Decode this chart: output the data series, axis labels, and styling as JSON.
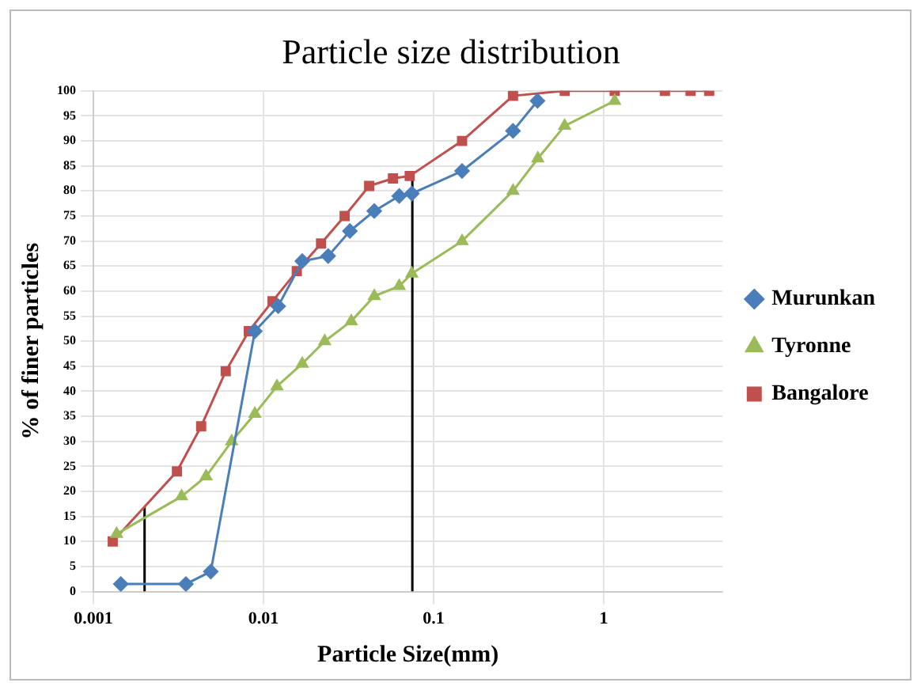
{
  "chart_data": {
    "type": "line",
    "title": "Particle size distribution",
    "xlabel": "Particle Size(mm)",
    "ylabel": "% of finer particles",
    "log": "x",
    "xlim": [
      0.001,
      5
    ],
    "xticks": [
      0.001,
      0.01,
      0.1,
      1
    ],
    "ylim": [
      0,
      100
    ],
    "yticks": [
      0,
      5,
      10,
      15,
      20,
      25,
      30,
      35,
      40,
      45,
      50,
      55,
      60,
      65,
      70,
      75,
      80,
      85,
      90,
      95,
      100
    ],
    "grid": true,
    "legend": "right",
    "series": [
      {
        "name": "Murunkan",
        "color": "#4a7ebb",
        "marker": "diamond",
        "x": [
          0.00145,
          0.0035,
          0.0049,
          0.0089,
          0.0122,
          0.0169,
          0.024,
          0.0322,
          0.0448,
          0.0628,
          0.0745,
          0.147,
          0.293,
          0.408
        ],
        "values": [
          1.5,
          1.5,
          4,
          52,
          57,
          66,
          67,
          72,
          76,
          79,
          79.5,
          84,
          92,
          98
        ]
      },
      {
        "name": "Tyronne",
        "color": "#9bbb59",
        "marker": "triangle",
        "x": [
          0.00137,
          0.0033,
          0.0046,
          0.0065,
          0.0089,
          0.012,
          0.0169,
          0.0229,
          0.0328,
          0.0448,
          0.0628,
          0.0745,
          0.147,
          0.293,
          0.41,
          0.589,
          1.16
        ],
        "values": [
          11.5,
          19,
          23,
          30,
          35.5,
          41,
          45.5,
          50,
          54,
          59,
          61,
          63.5,
          70,
          80,
          86.5,
          93,
          98
        ]
      },
      {
        "name": "Bangalore",
        "color": "#c0504d",
        "marker": "square",
        "x": [
          0.0013,
          0.0031,
          0.0043,
          0.006,
          0.0082,
          0.0113,
          0.0157,
          0.0218,
          0.03,
          0.0418,
          0.0577,
          0.0724,
          0.147,
          0.293,
          0.59,
          1.16,
          2.29,
          3.24,
          4.17
        ],
        "values": [
          10,
          24,
          33,
          44,
          52,
          58,
          64,
          69.5,
          75,
          81,
          82.5,
          83,
          90,
          99,
          100,
          100,
          100,
          100,
          100
        ]
      },
      {
        "color": "#000000",
        "marker": "none",
        "x": [
          0.002,
          0.002
        ],
        "values": [
          0,
          17
        ]
      },
      {
        "color": "#000000",
        "marker": "none",
        "x": [
          0.075,
          0.075
        ],
        "values": [
          0,
          83
        ]
      }
    ]
  }
}
